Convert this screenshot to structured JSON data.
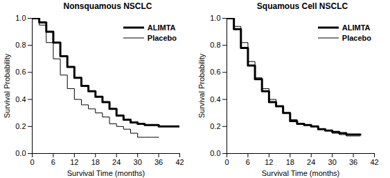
{
  "chart_data": [
    {
      "type": "line",
      "line_style": "step",
      "title": "Nonsquamous NSCLC",
      "x_label": "Survival Time (months)",
      "y_label": "Survival Probability",
      "x": [
        0,
        2,
        4,
        6,
        8,
        10,
        12,
        14,
        16,
        18,
        20,
        22,
        24,
        26,
        28,
        30,
        32,
        34,
        36,
        38,
        40,
        42
      ],
      "xlim": [
        0,
        42
      ],
      "xticks": [
        0,
        6,
        12,
        18,
        24,
        30,
        36,
        42
      ],
      "ylim": [
        0,
        1
      ],
      "yticks": [
        {
          "value": 0,
          "label": "0.0"
        },
        0.2,
        0.4,
        0.6,
        0.8,
        {
          "value": 1,
          "label": "1.0"
        }
      ],
      "legend": "upper right",
      "series": [
        {
          "name": "ALIMTA",
          "color": "#000000",
          "values": [
            1,
            0.97,
            0.9,
            0.82,
            0.72,
            0.64,
            0.56,
            0.5,
            0.46,
            0.42,
            0.38,
            0.33,
            0.28,
            0.25,
            0.23,
            0.22,
            0.21,
            0.21,
            0.2,
            0.2,
            0.2,
            0.2
          ]
        },
        {
          "name": "Placebo",
          "color": "#000000",
          "values": [
            1,
            0.95,
            0.82,
            0.7,
            0.58,
            0.48,
            0.4,
            0.36,
            0.33,
            0.3,
            0.27,
            0.22,
            0.2,
            0.18,
            0.15,
            0.12,
            0.12,
            0.12,
            0.12,
            null,
            null,
            null
          ]
        }
      ]
    },
    {
      "type": "line",
      "line_style": "step",
      "title": "Squamous Cell NSCLC",
      "x_label": "Survival Time (months)",
      "y_label": "Survival Probability",
      "x": [
        0,
        2,
        4,
        6,
        8,
        10,
        12,
        14,
        16,
        18,
        20,
        22,
        24,
        26,
        28,
        30,
        32,
        34,
        36,
        38,
        40,
        42
      ],
      "xlim": [
        0,
        42
      ],
      "xticks": [
        0,
        6,
        12,
        18,
        24,
        30,
        36,
        42
      ],
      "ylim": [
        0,
        1
      ],
      "yticks": [
        {
          "value": 0,
          "label": "0.0"
        },
        0.2,
        0.4,
        0.6,
        0.8,
        {
          "value": 1,
          "label": "1.0"
        }
      ],
      "legend": "upper right",
      "series": [
        {
          "name": "ALIMTA",
          "color": "#000000",
          "values": [
            1,
            0.92,
            0.78,
            0.65,
            0.55,
            0.46,
            0.38,
            0.35,
            0.3,
            0.24,
            0.22,
            0.21,
            0.2,
            0.18,
            0.17,
            0.16,
            0.15,
            0.14,
            0.14,
            0.14,
            null,
            null
          ]
        },
        {
          "name": "Placebo",
          "color": "#000000",
          "values": [
            1,
            0.94,
            0.82,
            0.68,
            0.56,
            0.48,
            0.4,
            0.35,
            0.3,
            0.25,
            0.22,
            0.21,
            0.2,
            0.18,
            0.17,
            0.15,
            0.14,
            0.13,
            0.13,
            0.13,
            null,
            null
          ]
        }
      ]
    }
  ]
}
